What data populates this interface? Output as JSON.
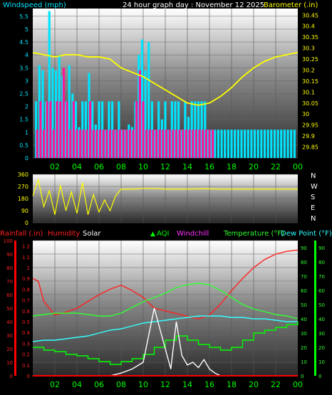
{
  "header": {
    "windspeed_label": "Windspeed (mph)",
    "graph_title": "24 hour graph day : November 12 2025",
    "barometer_label": "Barometer (.in)"
  },
  "bottom_header": {
    "rainfall_label": "Rainfall (.in)",
    "humidity_label": "Humidity",
    "solar_label": "Solar",
    "aqi_label": "AQI",
    "windchill_label": "Windchill",
    "temperature_label": "Temperature (°F)",
    "dewpoint_label": "Dew Point (°F)"
  },
  "colors": {
    "windspeed": "#00e5ff",
    "gust": "#ff1493",
    "barometer": "#ffff00",
    "direction": "#ffff00",
    "rainfall": "#ff0000",
    "humidity": "#ff2020",
    "solar": "#ffffff",
    "aqi": "#00ff00",
    "windchill": "#ff33ff",
    "temperature": "#33ff33",
    "dewpoint": "#33ffff",
    "axis_text": "#00ff00",
    "wind_axis_text": "#00e5ff",
    "baro_axis_text": "#ffff00"
  },
  "chart_data": [
    {
      "type": "bar",
      "title": "24 hour graph day : November 12 2025",
      "xlabel": "",
      "ylabel": "Windspeed (mph)",
      "x_ticks": [
        "02",
        "04",
        "06",
        "08",
        "10",
        "12",
        "14",
        "16",
        "18",
        "20",
        "22",
        "00"
      ],
      "ylim": [
        0,
        5.8
      ],
      "y_ticks": [
        "0",
        "0.5",
        "1",
        "1.5",
        "2",
        "2.5",
        "3",
        "3.5",
        "4",
        "4.5",
        "5",
        "5.5"
      ],
      "series": [
        {
          "name": "Windspeed",
          "hours": [
            0.3,
            0.6,
            0.9,
            1.2,
            1.5,
            1.8,
            2.1,
            2.4,
            2.7,
            3.0,
            3.3,
            3.6,
            3.9,
            4.2,
            4.5,
            4.8,
            5.1,
            5.4,
            5.7,
            6.0,
            6.3,
            6.6,
            6.9,
            7.2,
            7.5,
            7.8,
            8.1,
            8.4,
            8.7,
            9.0,
            9.3,
            9.6,
            9.9,
            10.2,
            10.5,
            10.8,
            11.1,
            11.4,
            11.7,
            12.0,
            12.3,
            12.6,
            12.9,
            13.2,
            13.5,
            13.8,
            14.1,
            14.4,
            14.7,
            15.0,
            15.3,
            15.6,
            15.9,
            16.2,
            16.5,
            16.8,
            17.1,
            17.4,
            17.7,
            18.0,
            18.3,
            18.6,
            18.9,
            19.2,
            19.5,
            19.8,
            20.1,
            20.4,
            20.7,
            21.0,
            21.3,
            21.6,
            21.9,
            22.2,
            22.5,
            22.8,
            23.1,
            23.4,
            23.7
          ],
          "values": [
            2.2,
            3.6,
            3.4,
            2.2,
            5.7,
            3.5,
            3.4,
            4.0,
            3.2,
            2.2,
            3.6,
            2.5,
            2.2,
            1.2,
            2.2,
            2.2,
            3.3,
            2.2,
            1.3,
            2.2,
            2.2,
            1.1,
            2.2,
            2.2,
            1.1,
            2.2,
            1.1,
            1.1,
            1.3,
            1.2,
            2.2,
            4.0,
            4.6,
            3.4,
            4.5,
            2.2,
            1.1,
            2.2,
            1.5,
            2.2,
            1.1,
            2.2,
            2.2,
            2.2,
            1.1,
            2.2,
            1.6,
            2.2,
            2.2,
            2.2,
            2.2,
            2.2,
            1.1,
            1.1,
            1.1,
            1.1,
            1.1,
            1.1,
            1.1,
            1.1,
            1.1,
            1.1,
            1.1,
            1.1,
            1.1,
            1.1,
            1.1,
            1.1,
            1.1,
            1.1,
            1.1,
            1.1,
            1.1,
            1.1,
            1.1,
            1.1,
            1.1,
            1.1,
            1.1
          ]
        },
        {
          "name": "Gust",
          "hours": [
            0.3,
            0.6,
            0.9,
            1.2,
            1.5,
            1.8,
            2.1,
            2.4,
            2.7,
            3.0,
            3.3,
            3.6,
            3.9,
            4.2,
            4.5,
            4.8,
            5.1,
            5.4,
            5.7,
            6.0,
            6.3,
            6.6,
            6.9,
            7.2,
            7.5,
            7.8,
            8.1,
            8.4,
            8.7,
            9.0,
            9.3,
            9.6,
            9.9,
            10.2,
            10.5,
            10.8,
            11.1,
            11.4,
            11.7,
            12.0,
            12.3,
            12.6,
            12.9,
            13.2,
            13.5,
            13.8,
            14.1,
            14.4,
            14.7,
            15.0,
            15.3,
            15.6,
            15.9,
            16.2
          ],
          "values": [
            1.1,
            2.2,
            1.1,
            2.2,
            2.2,
            1.1,
            2.2,
            2.2,
            3.5,
            2.2,
            1.1,
            2.2,
            1.1,
            1.1,
            1.1,
            1.1,
            2.2,
            1.1,
            1.1,
            1.1,
            1.1,
            1.1,
            1.1,
            1.1,
            1.1,
            1.1,
            1.1,
            1.1,
            1.1,
            1.1,
            2.2,
            3.4,
            2.2,
            1.1,
            1.1,
            1.1,
            1.1,
            1.1,
            1.1,
            1.1,
            1.1,
            1.1,
            1.1,
            1.1,
            1.1,
            1.1,
            1.1,
            1.1,
            1.1,
            1.1,
            1.1,
            1.1,
            1.1,
            1.1
          ]
        }
      ]
    },
    {
      "type": "line",
      "ylabel": "Barometer (.in)",
      "ylim": [
        29.8,
        30.48
      ],
      "y_ticks": [
        "29.85",
        "29.9",
        "29.95",
        "30",
        "30.05",
        "30.1",
        "30.15",
        "30.2",
        "30.25",
        "30.3",
        "30.35",
        "30.4",
        "30.45"
      ],
      "series": [
        {
          "name": "Barometer",
          "x": [
            0,
            1,
            2,
            3,
            4,
            5,
            6,
            7,
            8,
            9,
            10,
            11,
            12,
            13,
            14,
            15,
            16,
            17,
            18,
            19,
            20,
            21,
            22,
            23,
            24
          ],
          "y": [
            30.28,
            30.27,
            30.26,
            30.27,
            30.27,
            30.26,
            30.26,
            30.25,
            30.21,
            30.19,
            30.17,
            30.14,
            30.11,
            30.08,
            30.05,
            30.04,
            30.05,
            30.08,
            30.12,
            30.17,
            30.21,
            30.24,
            30.26,
            30.27,
            30.28
          ]
        }
      ]
    },
    {
      "type": "line",
      "ylabel": "Wind Direction",
      "ylim": [
        0,
        360
      ],
      "y_ticks": [
        "0",
        "90",
        "180",
        "270",
        "360"
      ],
      "direction_labels": [
        "N",
        "W",
        "S",
        "E",
        "N"
      ],
      "series": [
        {
          "name": "Wind Direction",
          "x": [
            0,
            0.5,
            1,
            1.5,
            2,
            2.5,
            3,
            3.5,
            4,
            4.5,
            5,
            5.5,
            6,
            6.5,
            7,
            7.5,
            8,
            9,
            10,
            11,
            12,
            13,
            14,
            15,
            16,
            17,
            18,
            19,
            20,
            21,
            22,
            23,
            24
          ],
          "y": [
            200,
            320,
            120,
            240,
            60,
            280,
            90,
            230,
            70,
            300,
            60,
            210,
            80,
            170,
            90,
            200,
            250,
            250,
            255,
            255,
            250,
            250,
            250,
            252,
            252,
            250,
            250,
            250,
            250,
            250,
            250,
            250,
            250
          ]
        }
      ]
    },
    {
      "type": "line",
      "x_ticks": [
        "02",
        "04",
        "06",
        "08",
        "10",
        "12",
        "14",
        "16",
        "18",
        "20",
        "22",
        "00"
      ],
      "left_ticks_humidity": [
        "0",
        "10",
        "20",
        "30",
        "40",
        "50",
        "60",
        "70",
        "80",
        "90",
        "100"
      ],
      "left_ticks_rain": [
        "0",
        "0.1",
        "0.2",
        "0.3",
        "0.4",
        "0.5",
        "0.6",
        "0.7",
        "0.8",
        "0.9",
        "1",
        "1.1",
        "1.2"
      ],
      "right_ticks_temp": [
        "0",
        "10",
        "20",
        "30",
        "40",
        "50",
        "60",
        "70",
        "80",
        "90"
      ],
      "series": [
        {
          "name": "Humidity",
          "x": [
            0,
            0.5,
            1,
            1.5,
            2,
            3,
            4,
            5,
            6,
            7,
            8,
            9,
            10,
            11,
            12,
            13,
            14,
            15,
            16,
            17,
            18,
            19,
            20,
            21,
            22,
            23,
            24
          ],
          "y": [
            72,
            70,
            55,
            50,
            45,
            47,
            50,
            55,
            60,
            64,
            67,
            63,
            58,
            50,
            48,
            46,
            44,
            42,
            45,
            53,
            63,
            72,
            80,
            86,
            90,
            92,
            93
          ]
        },
        {
          "name": "Temperature",
          "x": [
            0,
            1,
            2,
            3,
            4,
            5,
            6,
            7,
            8,
            9,
            10,
            11,
            12,
            13,
            14,
            15,
            16,
            17,
            18,
            19,
            20,
            21,
            22,
            23,
            24
          ],
          "y": [
            42,
            43,
            44,
            44,
            44,
            43,
            42,
            42,
            44,
            48,
            52,
            55,
            58,
            62,
            64,
            65,
            64,
            60,
            55,
            50,
            47,
            45,
            43,
            42,
            40
          ]
        },
        {
          "name": "Dew Point",
          "x": [
            0,
            1,
            2,
            3,
            4,
            5,
            6,
            7,
            8,
            9,
            10,
            11,
            12,
            13,
            14,
            15,
            16,
            17,
            18,
            19,
            20,
            21,
            22,
            23,
            24
          ],
          "y": [
            24,
            25,
            25,
            26,
            27,
            28,
            30,
            32,
            33,
            35,
            37,
            38,
            39,
            40,
            41,
            42,
            42,
            42,
            41,
            41,
            40,
            40,
            39,
            38,
            38
          ]
        },
        {
          "name": "AQI",
          "x": [
            0,
            1,
            2,
            3,
            4,
            5,
            6,
            7,
            8,
            9,
            10,
            11,
            12,
            13,
            14,
            15,
            16,
            17,
            18,
            19,
            20,
            21,
            22,
            23,
            24
          ],
          "y": [
            20,
            18,
            17,
            15,
            14,
            12,
            10,
            8,
            10,
            12,
            15,
            20,
            25,
            28,
            25,
            22,
            20,
            18,
            20,
            25,
            30,
            32,
            34,
            36,
            38
          ]
        },
        {
          "name": "Solar",
          "x": [
            0,
            7,
            8,
            9,
            10,
            10.5,
            11,
            11.5,
            12,
            12.5,
            13,
            13.5,
            14,
            14.5,
            15,
            15.5,
            16,
            16.5,
            17,
            24
          ],
          "y": [
            0,
            0,
            0.02,
            0.05,
            0.1,
            0.3,
            0.5,
            0.35,
            0.2,
            0.05,
            0.4,
            0.15,
            0.08,
            0.1,
            0.06,
            0.12,
            0.05,
            0.02,
            0,
            0
          ]
        },
        {
          "name": "Rainfall",
          "x": [
            0,
            24
          ],
          "y": [
            0,
            0
          ]
        }
      ]
    }
  ]
}
